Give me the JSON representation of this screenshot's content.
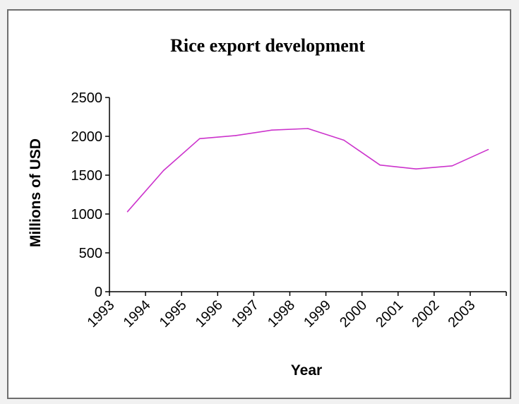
{
  "chart_data": {
    "type": "line",
    "title": "Rice export development",
    "xlabel": "Year",
    "ylabel": "Millions of USD",
    "categories": [
      "1993",
      "1994",
      "1995",
      "1996",
      "1997",
      "1998",
      "1999",
      "2000",
      "2001",
      "2002",
      "2003"
    ],
    "series": [
      {
        "values": [
          1030,
          1560,
          1970,
          2010,
          2080,
          2100,
          1950,
          1630,
          1580,
          1620,
          1830
        ]
      }
    ],
    "yticks": [
      "0",
      "500",
      "1000",
      "1500",
      "2000",
      "2500"
    ],
    "ylim": [
      0,
      2500
    ],
    "grid": false,
    "legend": "none",
    "line_color": "#cc33cc"
  }
}
